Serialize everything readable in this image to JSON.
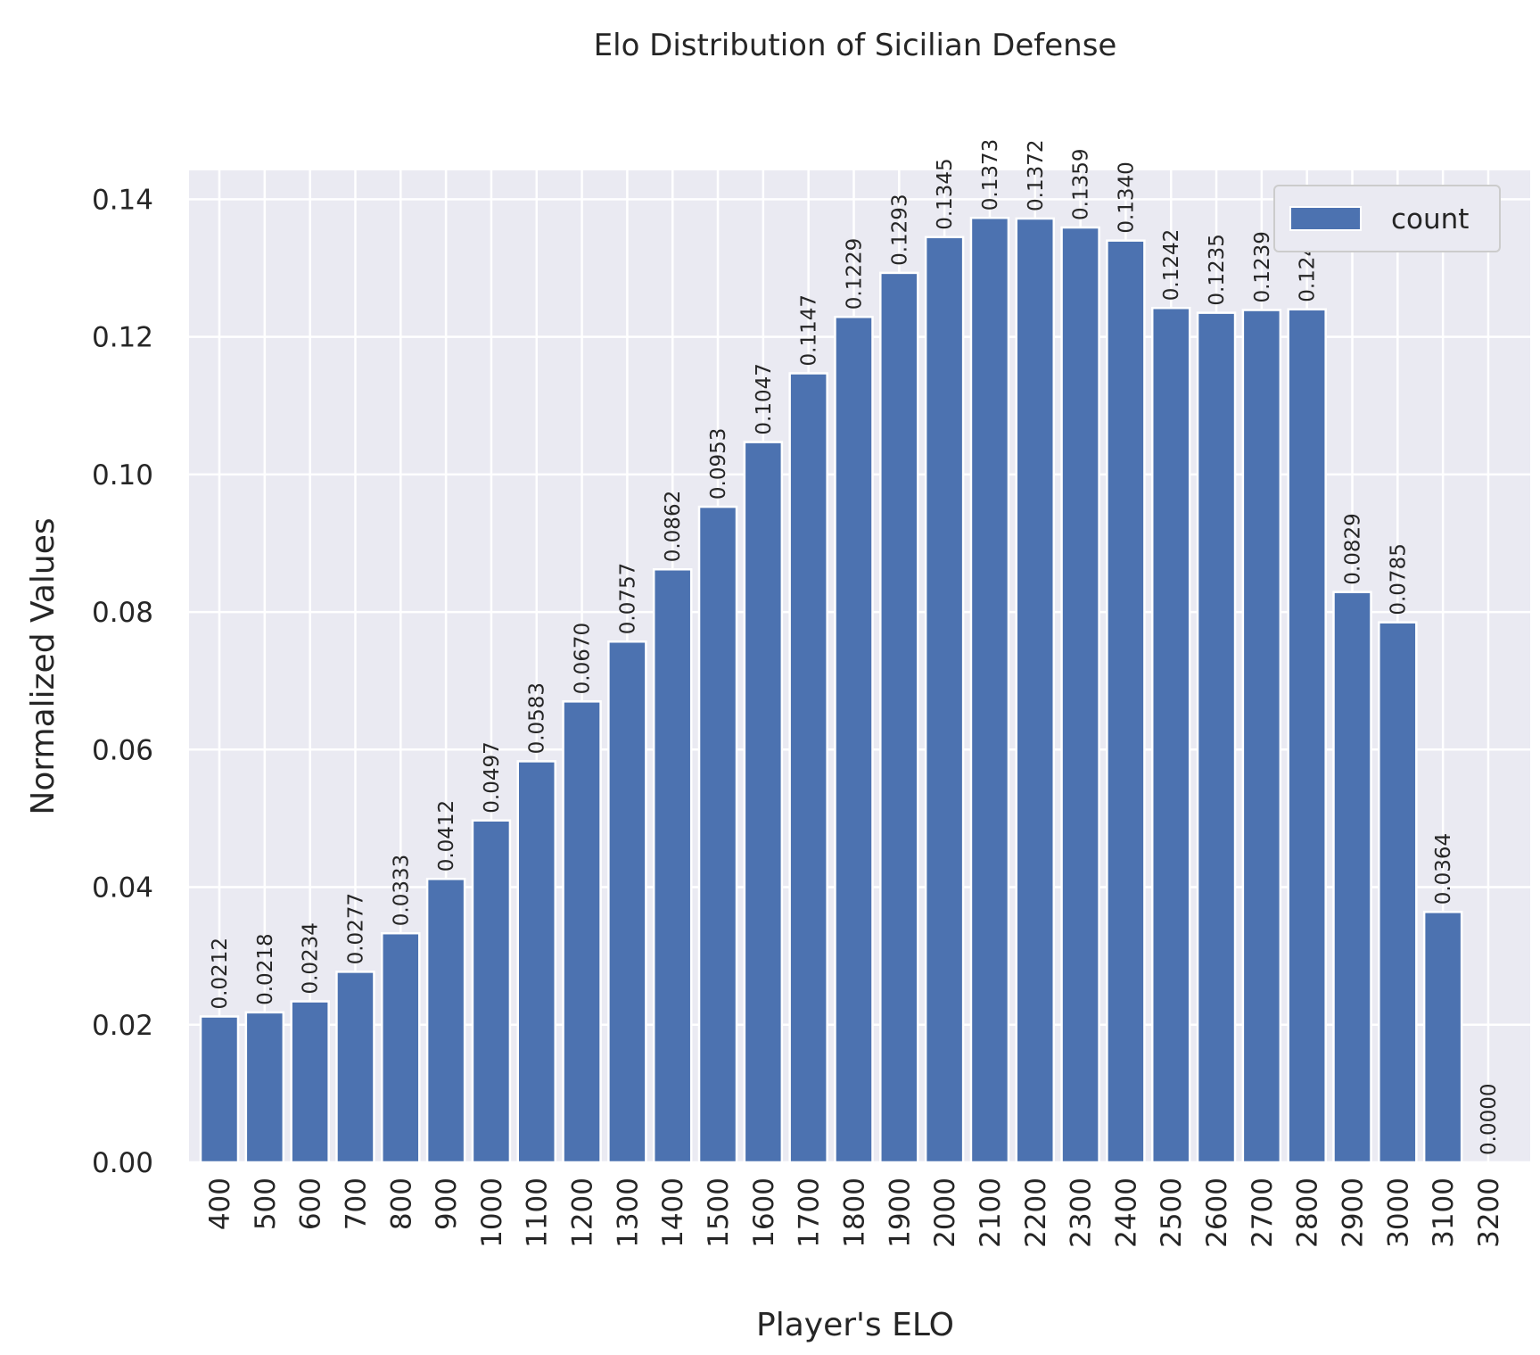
{
  "chart_data": {
    "type": "bar",
    "title": "Elo Distribution of Sicilian Defense",
    "xlabel": "Player's ELO",
    "ylabel": "Normalized Values",
    "categories": [
      "400",
      "500",
      "600",
      "700",
      "800",
      "900",
      "1000",
      "1100",
      "1200",
      "1300",
      "1400",
      "1500",
      "1600",
      "1700",
      "1800",
      "1900",
      "2000",
      "2100",
      "2200",
      "2300",
      "2400",
      "2500",
      "2600",
      "2700",
      "2800",
      "2900",
      "3000",
      "3100",
      "3200"
    ],
    "series": [
      {
        "name": "count",
        "values": [
          0.0212,
          0.0218,
          0.0234,
          0.0277,
          0.0333,
          0.0412,
          0.0497,
          0.0583,
          0.067,
          0.0757,
          0.0862,
          0.0953,
          0.1047,
          0.1147,
          0.1229,
          0.1293,
          0.1345,
          0.1373,
          0.1372,
          0.1359,
          0.134,
          0.1242,
          0.1235,
          0.1239,
          0.124,
          0.0829,
          0.0785,
          0.0364,
          0.0
        ]
      }
    ],
    "data_labels": [
      "0.0212",
      "0.0218",
      "0.0234",
      "0.0277",
      "0.0333",
      "0.0412",
      "0.0497",
      "0.0583",
      "0.0670",
      "0.0757",
      "0.0862",
      "0.0953",
      "0.1047",
      "0.1147",
      "0.1229",
      "0.1293",
      "0.1345",
      "0.1373",
      "0.1372",
      "0.1359",
      "0.1340",
      "0.1242",
      "0.1235",
      "0.1239",
      "0.124",
      "0.0829",
      "0.0785",
      "0.0364",
      "0.0000"
    ],
    "yticks": [
      "0.00",
      "0.02",
      "0.04",
      "0.06",
      "0.08",
      "0.10",
      "0.12",
      "0.14"
    ],
    "ylim": [
      0,
      0.1442
    ],
    "grid": true,
    "legend_position": "top-right",
    "colors": {
      "bar": "#4c72b0",
      "background": "#eaeaf2",
      "grid": "#ffffff",
      "text": "#262626"
    }
  }
}
